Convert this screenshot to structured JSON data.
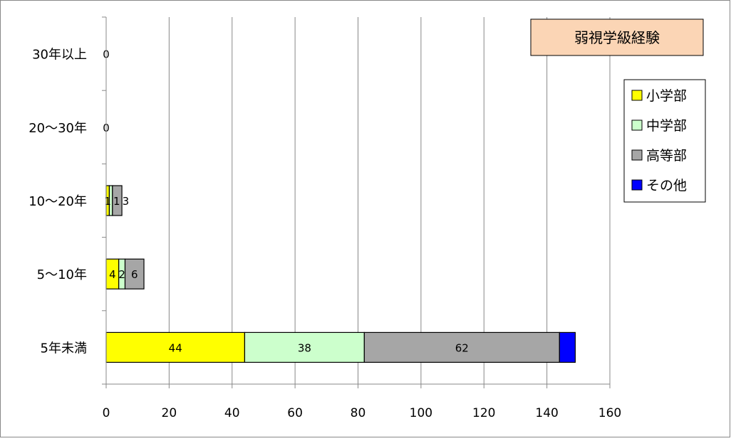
{
  "chart_data": {
    "type": "bar",
    "orientation": "horizontal",
    "stacked": true,
    "title": "弱視学級経験",
    "categories": [
      "5年未満",
      "5〜10年",
      "10〜20年",
      "20〜30年",
      "30年以上"
    ],
    "series": [
      {
        "name": "小学部",
        "color": "#ffff00",
        "values": [
          44,
          4,
          1,
          0,
          0
        ],
        "labels": [
          "44",
          "4",
          "1",
          "0",
          "0"
        ]
      },
      {
        "name": "中学部",
        "color": "#ccffcc",
        "values": [
          38,
          2,
          1,
          0,
          0
        ],
        "labels": [
          "38",
          "2",
          "1",
          "",
          ""
        ]
      },
      {
        "name": "高等部",
        "color": "#a6a6a6",
        "values": [
          62,
          6,
          3,
          0,
          0
        ],
        "labels": [
          "62",
          "6",
          "3",
          "",
          ""
        ]
      },
      {
        "name": "その他",
        "color": "#0000ff",
        "values": [
          5,
          0,
          0,
          0,
          0
        ],
        "labels": [
          "",
          "",
          "",
          "",
          ""
        ]
      }
    ],
    "xlim": [
      0,
      160
    ],
    "xticks": [
      "0",
      "20",
      "40",
      "60",
      "80",
      "100",
      "120",
      "140",
      "160"
    ],
    "grid": "vertical",
    "legend": "right"
  }
}
